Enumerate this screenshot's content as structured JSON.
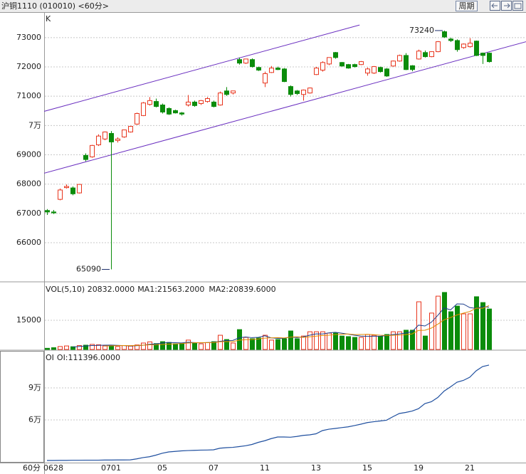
{
  "header": {
    "title": "沪铜1110 (010010) <60分>",
    "button": "周期"
  },
  "chart_data": [
    {
      "type": "candlestick",
      "axis_label": "K",
      "up_color": "#e8341c",
      "down_color": "#0b8c0b",
      "open": [
        67100,
        67050,
        67480,
        67880,
        67870,
        67700,
        68980,
        68930,
        69340,
        69540,
        69730,
        69490,
        69610,
        69780,
        70050,
        70340,
        70720,
        70820,
        70700,
        70580,
        70510,
        70430,
        70700,
        70800,
        70750,
        70820,
        70800,
        70700,
        71180,
        71110,
        72250,
        72130,
        72250,
        71980,
        71450,
        71810,
        71960,
        71930,
        71330,
        71180,
        71060,
        71110,
        71740,
        71890,
        72100,
        72490,
        72150,
        72080,
        72080,
        72080,
        71790,
        71790,
        71980,
        71930,
        72030,
        72200,
        72390,
        72040,
        72270,
        72490,
        72350,
        72520,
        73200,
        72950,
        72900,
        72660,
        72690,
        72880,
        72470,
        72470
      ],
      "high": [
        67150,
        67120,
        67850,
        67990,
        67920,
        68000,
        69050,
        69340,
        69700,
        69800,
        69810,
        69600,
        69860,
        69990,
        70440,
        70800,
        70970,
        70920,
        70750,
        70620,
        70540,
        70460,
        71040,
        70850,
        70870,
        70970,
        70850,
        71160,
        71310,
        71180,
        72320,
        72270,
        72290,
        72010,
        71840,
        72030,
        72010,
        71960,
        71370,
        71210,
        71230,
        71300,
        72000,
        72190,
        72320,
        72510,
        72170,
        72100,
        72110,
        72200,
        71980,
        72030,
        72010,
        71960,
        72220,
        72420,
        72470,
        72060,
        72590,
        72560,
        72530,
        72880,
        73240,
        73000,
        72940,
        72800,
        72980,
        72900,
        72490,
        72490
      ],
      "low": [
        66950,
        66980,
        67450,
        67850,
        67620,
        67680,
        68780,
        68900,
        69300,
        69500,
        65090,
        69420,
        69580,
        69760,
        70020,
        70320,
        70680,
        70620,
        70410,
        70360,
        70410,
        70340,
        70650,
        70640,
        70700,
        70780,
        70620,
        70680,
        71010,
        71060,
        72080,
        72100,
        71980,
        71860,
        71310,
        71790,
        71890,
        71480,
        70990,
        71040,
        70850,
        71090,
        71720,
        71840,
        72060,
        72280,
        72010,
        71940,
        71980,
        72060,
        71700,
        71760,
        71810,
        71660,
        72010,
        72180,
        71890,
        71850,
        72250,
        72320,
        72330,
        72500,
        72990,
        72850,
        72520,
        72620,
        72660,
        72370,
        72100,
        72150
      ],
      "close": [
        67050,
        67020,
        67800,
        67920,
        67670,
        67990,
        68840,
        69320,
        69640,
        69780,
        69440,
        69540,
        69850,
        69970,
        70410,
        70770,
        70850,
        70650,
        70460,
        70390,
        70430,
        70390,
        70800,
        70680,
        70850,
        70920,
        70650,
        71110,
        71060,
        71180,
        72130,
        72270,
        72010,
        71890,
        71770,
        71960,
        71910,
        71500,
        71060,
        71090,
        71210,
        71280,
        71960,
        72150,
        72320,
        72320,
        72030,
        71960,
        72010,
        72180,
        71930,
        72010,
        71840,
        71690,
        72200,
        72390,
        71910,
        71910,
        72540,
        72350,
        72520,
        72860,
        73020,
        72900,
        72590,
        72780,
        72810,
        72390,
        72390,
        72180
      ],
      "ylim": [
        64690,
        73870
      ],
      "yticks": [
        66000,
        67000,
        68000,
        69000,
        {
          "value": 70000,
          "label": "7万"
        },
        71000,
        72000,
        73000
      ],
      "grid": true,
      "trend_lines": [
        {
          "color": "#6a2fc0",
          "points": [
            [
              -0.5,
              70480
            ],
            [
              48.8,
              73430
            ]
          ]
        },
        {
          "color": "#6a2fc0",
          "points": [
            [
              -0.5,
              68370
            ],
            [
              74.8,
              72860
            ]
          ]
        }
      ]
    },
    {
      "type": "volume",
      "title": "VOL(5,10) 20832.0000",
      "values": [
        600,
        900,
        1500,
        1800,
        1400,
        2000,
        2200,
        2600,
        2400,
        1800,
        2200,
        1500,
        2000,
        1700,
        2300,
        3300,
        3900,
        3000,
        4000,
        3600,
        2900,
        3300,
        4800,
        3100,
        2900,
        3500,
        4000,
        7300,
        5100,
        3300,
        10200,
        6200,
        5500,
        5900,
        7300,
        4800,
        5100,
        5500,
        9500,
        5500,
        6900,
        9100,
        9100,
        9100,
        8400,
        8400,
        6900,
        6600,
        6200,
        6200,
        7700,
        7300,
        6600,
        7700,
        9100,
        9100,
        9900,
        9900,
        24500,
        6900,
        18700,
        27400,
        29300,
        19400,
        22300,
        18300,
        18300,
        27100,
        24100,
        20800
      ],
      "series": [
        {
          "name": "MA1:21563.2000",
          "color": "#1b3d8c",
          "values": [
            null,
            null,
            null,
            null,
            1240,
            1520,
            1780,
            2000,
            2120,
            2200,
            2240,
            2100,
            1980,
            1840,
            1940,
            2160,
            2640,
            2840,
            3300,
            3560,
            3480,
            3360,
            3720,
            3540,
            3400,
            3520,
            3660,
            4160,
            4560,
            4640,
            5980,
            6420,
            6060,
            6220,
            7020,
            5940,
            5720,
            5720,
            6440,
            6080,
            6500,
            7300,
            8020,
            7940,
            8520,
            8820,
            8380,
            7880,
            7300,
            6860,
            6720,
            6800,
            6800,
            7100,
            7680,
            7960,
            8480,
            9140,
            12500,
            12060,
            13980,
            17480,
            21360,
            20340,
            23420,
            23340,
            21520,
            21080,
            22020,
            21720
          ]
        },
        {
          "name": "MA2:20839.6000",
          "color": "#e08a00",
          "values": [
            null,
            null,
            null,
            null,
            null,
            null,
            null,
            null,
            null,
            1720,
            1880,
            1940,
            1990,
            1980,
            2070,
            2200,
            2370,
            2410,
            2570,
            2750,
            2820,
            3000,
            3280,
            3420,
            3480,
            3500,
            3510,
            3940,
            4050,
            4020,
            4750,
            5040,
            5110,
            5390,
            5830,
            5960,
            6070,
            5890,
            6330,
            6550,
            6220,
            6510,
            6870,
            7190,
            7300,
            7660,
            7840,
            7950,
            7620,
            7690,
            7770,
            7590,
            7340,
            7200,
            7270,
            7340,
            7640,
            7970,
            9800,
            9870,
            10970,
            12980,
            15250,
            16420,
            17740,
            18660,
            19500,
            21220,
            21180,
            22570
          ]
        }
      ],
      "ylim": [
        0,
        34390
      ],
      "yticks": [
        15000
      ],
      "grid": true
    },
    {
      "type": "line",
      "title": "OI",
      "xlabel": "60分",
      "categories": [
        null,
        "0628",
        null,
        null,
        null,
        null,
        null,
        null,
        null,
        null,
        "0701",
        null,
        null,
        null,
        null,
        null,
        null,
        null,
        "05",
        null,
        null,
        null,
        null,
        null,
        null,
        null,
        "07",
        null,
        null,
        null,
        null,
        null,
        null,
        null,
        "11",
        null,
        null,
        null,
        null,
        null,
        null,
        null,
        "13",
        null,
        null,
        null,
        null,
        null,
        null,
        null,
        "15",
        null,
        null,
        null,
        null,
        null,
        null,
        null,
        "19",
        null,
        null,
        null,
        null,
        null,
        null,
        null,
        "21",
        null,
        null,
        null
      ],
      "series": [
        {
          "name": "OI:111396.0000",
          "color": "#1f4f9f",
          "values": [
            22000,
            22000,
            22100,
            22100,
            22200,
            22200,
            22300,
            22300,
            22300,
            22400,
            22400,
            22500,
            22500,
            22600,
            23500,
            24700,
            25500,
            27000,
            28800,
            30000,
            30500,
            31000,
            31300,
            31500,
            31700,
            31800,
            32000,
            33500,
            34000,
            34300,
            35000,
            35800,
            37000,
            39000,
            40500,
            42500,
            44000,
            44000,
            43800,
            44500,
            45500,
            46000,
            47000,
            50000,
            51300,
            52000,
            52800,
            53500,
            54700,
            56000,
            57500,
            58300,
            59000,
            59700,
            63000,
            66000,
            67000,
            68300,
            70500,
            75300,
            77000,
            81000,
            87000,
            91000,
            95300,
            97000,
            100000,
            106000,
            110000,
            111396
          ]
        }
      ],
      "ylim": [
        20000,
        124667
      ],
      "yticks": [
        {
          "value": 60000,
          "label": "6万"
        },
        {
          "value": 90000,
          "label": "9万"
        }
      ],
      "grid": true
    }
  ]
}
